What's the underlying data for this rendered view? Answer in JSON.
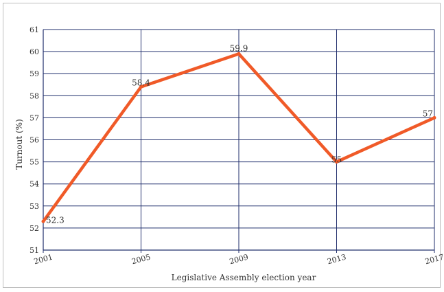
{
  "chart_data": {
    "type": "line",
    "title": "",
    "xlabel": "Legislative Assembly election year",
    "ylabel": "Turnout (%)",
    "categories": [
      "2001",
      "2005",
      "2009",
      "2013",
      "2017"
    ],
    "x": [
      2001,
      2005,
      2009,
      2013,
      2017
    ],
    "ylim": [
      51,
      61
    ],
    "yticks": [
      51,
      52,
      53,
      54,
      55,
      56,
      57,
      58,
      59,
      60,
      61
    ],
    "grid": true,
    "series": [
      {
        "values": [
          52.3,
          58.4,
          59.9,
          55,
          57
        ],
        "labels": [
          "52.3",
          "58.4",
          "59.9",
          "55",
          "57"
        ],
        "color": "#f05a28"
      }
    ],
    "colors": {
      "grid": "#1f2d6b",
      "line": "#f05a28"
    }
  }
}
